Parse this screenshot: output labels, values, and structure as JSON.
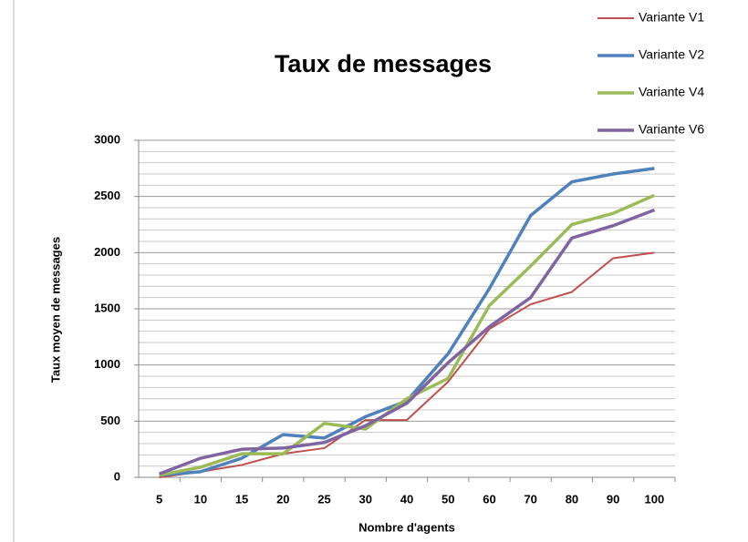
{
  "chart_data": {
    "type": "line",
    "title": "Taux de messages",
    "x_label": "Nombre d'agents",
    "y_label": "Taux moyen de messages",
    "categories": [
      "5",
      "10",
      "15",
      "20",
      "25",
      "30",
      "40",
      "50",
      "60",
      "70",
      "80",
      "90",
      "100"
    ],
    "series": [
      {
        "name": "Variante V1",
        "color": "#c0504d",
        "values": [
          0,
          50,
          110,
          210,
          260,
          510,
          510,
          850,
          1320,
          1540,
          1650,
          1950,
          2000
        ]
      },
      {
        "name": "Variante V2",
        "color": "#4f81bd",
        "values": [
          20,
          50,
          170,
          380,
          350,
          540,
          680,
          1100,
          1680,
          2330,
          2630,
          2700,
          2750
        ]
      },
      {
        "name": "Variante V4",
        "color": "#9bbb59",
        "values": [
          20,
          90,
          210,
          210,
          480,
          430,
          700,
          880,
          1530,
          1880,
          2250,
          2350,
          2510
        ]
      },
      {
        "name": "Variante V6",
        "color": "#8064a2",
        "values": [
          30,
          170,
          250,
          260,
          310,
          460,
          660,
          1020,
          1340,
          1600,
          2130,
          2240,
          2380
        ]
      }
    ],
    "ylim": [
      0,
      3000
    ],
    "yticks": [
      0,
      500,
      1000,
      1500,
      2000,
      2500,
      3000
    ],
    "y_minor_ticks": [
      100,
      200,
      300,
      400,
      600,
      700,
      800,
      900,
      1100,
      1200,
      1300,
      1400,
      1600,
      1700,
      1800,
      1900,
      2100,
      2200,
      2300,
      2400,
      2600,
      2700,
      2800,
      2900
    ],
    "grid": true,
    "legend": "top-right"
  }
}
